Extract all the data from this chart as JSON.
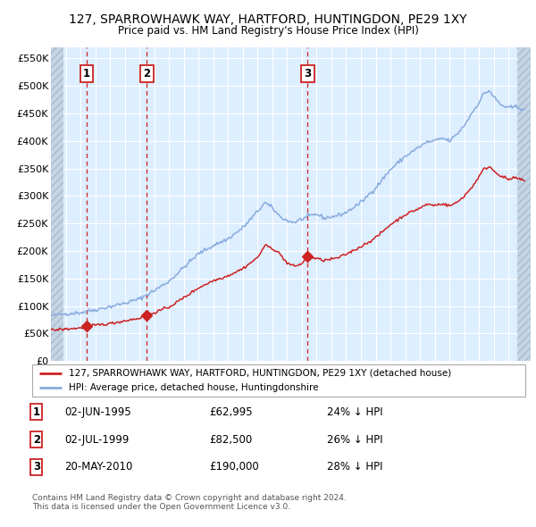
{
  "title1": "127, SPARROWHAWK WAY, HARTFORD, HUNTINGDON, PE29 1XY",
  "title2": "Price paid vs. HM Land Registry's House Price Index (HPI)",
  "legend1": "127, SPARROWHAWK WAY, HARTFORD, HUNTINGDON, PE29 1XY (detached house)",
  "legend2": "HPI: Average price, detached house, Huntingdonshire",
  "footnote1": "Contains HM Land Registry data © Crown copyright and database right 2024.",
  "footnote2": "This data is licensed under the Open Government Licence v3.0.",
  "red_color": "#cc2222",
  "blue_color": "#88aadd",
  "background_chart": "#ddeeff",
  "background_fig": "#ffffff",
  "grid_color": "#ffffff",
  "purchases": [
    {
      "label": "1",
      "date_x": 1995.42,
      "price": 62995
    },
    {
      "label": "2",
      "date_x": 1999.5,
      "price": 82500
    },
    {
      "label": "3",
      "date_x": 2010.38,
      "price": 190000
    }
  ],
  "table_rows": [
    {
      "num": "1",
      "date": "02-JUN-1995",
      "price": "£62,995",
      "hpi": "24% ↓ HPI"
    },
    {
      "num": "2",
      "date": "02-JUL-1999",
      "price": "£82,500",
      "hpi": "26% ↓ HPI"
    },
    {
      "num": "3",
      "date": "20-MAY-2010",
      "price": "£190,000",
      "hpi": "28% ↓ HPI"
    }
  ],
  "ylim": [
    0,
    570000
  ],
  "xlim": [
    1993.0,
    2025.5
  ],
  "yticks": [
    0,
    50000,
    100000,
    150000,
    200000,
    250000,
    300000,
    350000,
    400000,
    450000,
    500000,
    550000
  ],
  "ytick_labels": [
    "£0",
    "£50K",
    "£100K",
    "£150K",
    "£200K",
    "£250K",
    "£300K",
    "£350K",
    "£400K",
    "£450K",
    "£500K",
    "£550K"
  ],
  "xticks": [
    1993,
    1994,
    1995,
    1996,
    1997,
    1998,
    1999,
    2000,
    2001,
    2002,
    2003,
    2004,
    2005,
    2006,
    2007,
    2008,
    2009,
    2010,
    2011,
    2012,
    2013,
    2014,
    2015,
    2016,
    2017,
    2018,
    2019,
    2020,
    2021,
    2022,
    2023,
    2024,
    2025
  ],
  "hpi_anchors": [
    [
      1993.0,
      82000
    ],
    [
      1994.0,
      86000
    ],
    [
      1995.0,
      88000
    ],
    [
      1996.0,
      93000
    ],
    [
      1997.0,
      99000
    ],
    [
      1998.0,
      105000
    ],
    [
      1999.0,
      113000
    ],
    [
      2000.0,
      128000
    ],
    [
      2001.0,
      145000
    ],
    [
      2002.0,
      170000
    ],
    [
      2003.0,
      195000
    ],
    [
      2004.0,
      210000
    ],
    [
      2005.0,
      222000
    ],
    [
      2006.0,
      242000
    ],
    [
      2007.0,
      272000
    ],
    [
      2007.5,
      288000
    ],
    [
      2008.0,
      278000
    ],
    [
      2008.5,
      263000
    ],
    [
      2009.0,
      255000
    ],
    [
      2009.5,
      252000
    ],
    [
      2010.0,
      258000
    ],
    [
      2010.5,
      263000
    ],
    [
      2011.0,
      267000
    ],
    [
      2011.5,
      260000
    ],
    [
      2012.0,
      262000
    ],
    [
      2012.5,
      265000
    ],
    [
      2013.0,
      270000
    ],
    [
      2014.0,
      288000
    ],
    [
      2015.0,
      315000
    ],
    [
      2016.0,
      348000
    ],
    [
      2017.0,
      372000
    ],
    [
      2018.0,
      390000
    ],
    [
      2018.5,
      398000
    ],
    [
      2019.0,
      400000
    ],
    [
      2019.5,
      405000
    ],
    [
      2020.0,
      400000
    ],
    [
      2020.5,
      412000
    ],
    [
      2021.0,
      428000
    ],
    [
      2021.5,
      450000
    ],
    [
      2022.0,
      470000
    ],
    [
      2022.3,
      485000
    ],
    [
      2022.7,
      492000
    ],
    [
      2023.0,
      480000
    ],
    [
      2023.5,
      465000
    ],
    [
      2024.0,
      460000
    ],
    [
      2024.5,
      462000
    ],
    [
      2025.0,
      458000
    ]
  ],
  "red_anchors": [
    [
      1993.0,
      56000
    ],
    [
      1994.0,
      58000
    ],
    [
      1995.0,
      60000
    ],
    [
      1995.42,
      62995
    ],
    [
      1996.0,
      65000
    ],
    [
      1997.0,
      68000
    ],
    [
      1998.0,
      73000
    ],
    [
      1999.0,
      78000
    ],
    [
      1999.5,
      82500
    ],
    [
      2000.0,
      88000
    ],
    [
      2001.0,
      98000
    ],
    [
      2002.0,
      115000
    ],
    [
      2003.0,
      133000
    ],
    [
      2004.0,
      146000
    ],
    [
      2005.0,
      155000
    ],
    [
      2006.0,
      168000
    ],
    [
      2007.0,
      188000
    ],
    [
      2007.5,
      210000
    ],
    [
      2008.0,
      205000
    ],
    [
      2008.5,
      195000
    ],
    [
      2009.0,
      178000
    ],
    [
      2009.5,
      172000
    ],
    [
      2010.0,
      177000
    ],
    [
      2010.38,
      190000
    ],
    [
      2010.5,
      188000
    ],
    [
      2011.0,
      186000
    ],
    [
      2011.5,
      183000
    ],
    [
      2012.0,
      185000
    ],
    [
      2012.5,
      188000
    ],
    [
      2013.0,
      194000
    ],
    [
      2014.0,
      208000
    ],
    [
      2015.0,
      224000
    ],
    [
      2016.0,
      248000
    ],
    [
      2017.0,
      266000
    ],
    [
      2018.0,
      278000
    ],
    [
      2018.5,
      285000
    ],
    [
      2019.0,
      283000
    ],
    [
      2019.5,
      286000
    ],
    [
      2020.0,
      282000
    ],
    [
      2020.5,
      288000
    ],
    [
      2021.0,
      300000
    ],
    [
      2021.5,
      315000
    ],
    [
      2022.0,
      335000
    ],
    [
      2022.3,
      348000
    ],
    [
      2022.7,
      354000
    ],
    [
      2023.0,
      346000
    ],
    [
      2023.5,
      336000
    ],
    [
      2024.0,
      330000
    ],
    [
      2024.5,
      333000
    ],
    [
      2025.0,
      328000
    ]
  ]
}
